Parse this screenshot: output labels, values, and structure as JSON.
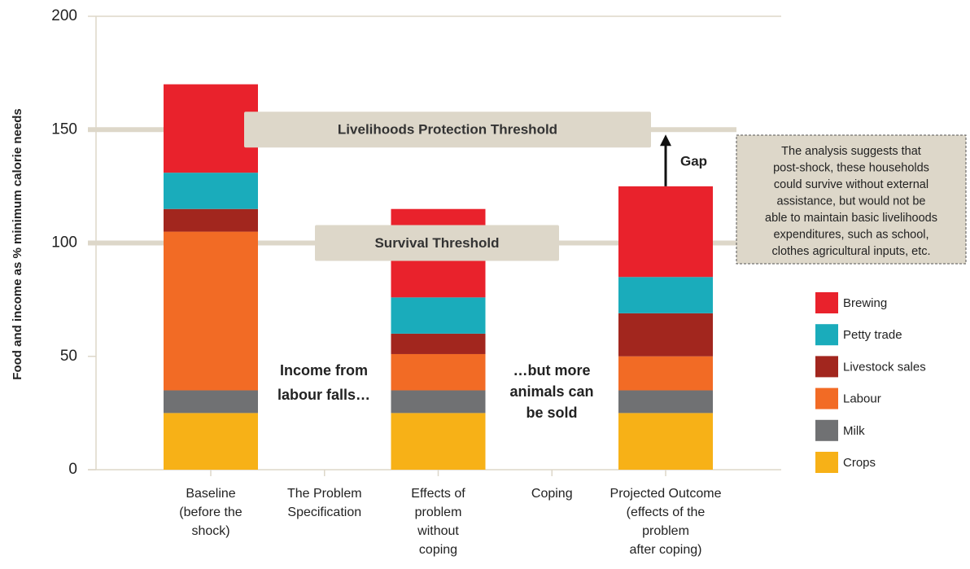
{
  "chart_data": {
    "type": "bar",
    "stacked": true,
    "y_label": "Food and income as % minimum calorie needs",
    "categories": [
      "Baseline\n(before the\nshock)",
      "The Problem\nSpecification",
      "Effects of\nproblem\nwithout\ncoping",
      "Coping",
      "Projected Outcome\n(effects of the\nproblem\nafter coping)"
    ],
    "series": [
      {
        "name": "Crops",
        "color": "#f7b117",
        "values": [
          25,
          null,
          25,
          null,
          25
        ]
      },
      {
        "name": "Milk",
        "color": "#707173",
        "values": [
          10,
          null,
          10,
          null,
          10
        ]
      },
      {
        "name": "Labour",
        "color": "#f26b25",
        "values": [
          70,
          null,
          16,
          null,
          15
        ]
      },
      {
        "name": "Livestock sales",
        "color": "#a2261e",
        "values": [
          10,
          null,
          9,
          null,
          19
        ]
      },
      {
        "name": "Petty trade",
        "color": "#1aacbb",
        "values": [
          16,
          null,
          16,
          null,
          16
        ]
      },
      {
        "name": "Brewing",
        "color": "#e9222c",
        "values": [
          39,
          null,
          39,
          null,
          40
        ]
      }
    ],
    "ylim": [
      0,
      200
    ],
    "yticks": [
      0,
      50,
      100,
      150,
      200
    ],
    "thresholds": [
      {
        "label": "Livelihoods Protection Threshold",
        "value": 150
      },
      {
        "label": "Survival Threshold",
        "value": 100
      }
    ],
    "gap_label": "Gap",
    "annotations": [
      {
        "lines": [
          "Income from",
          "labour falls…"
        ]
      },
      {
        "lines": [
          "…but more",
          "animals can",
          "be sold"
        ]
      }
    ],
    "note": [
      "The analysis suggests that",
      "post-shock, these households",
      "could survive without external",
      "assistance, but would not be",
      "able to maintain basic livelihoods",
      "expenditures, such as school,",
      "clothes agricultural inputs, etc."
    ]
  }
}
